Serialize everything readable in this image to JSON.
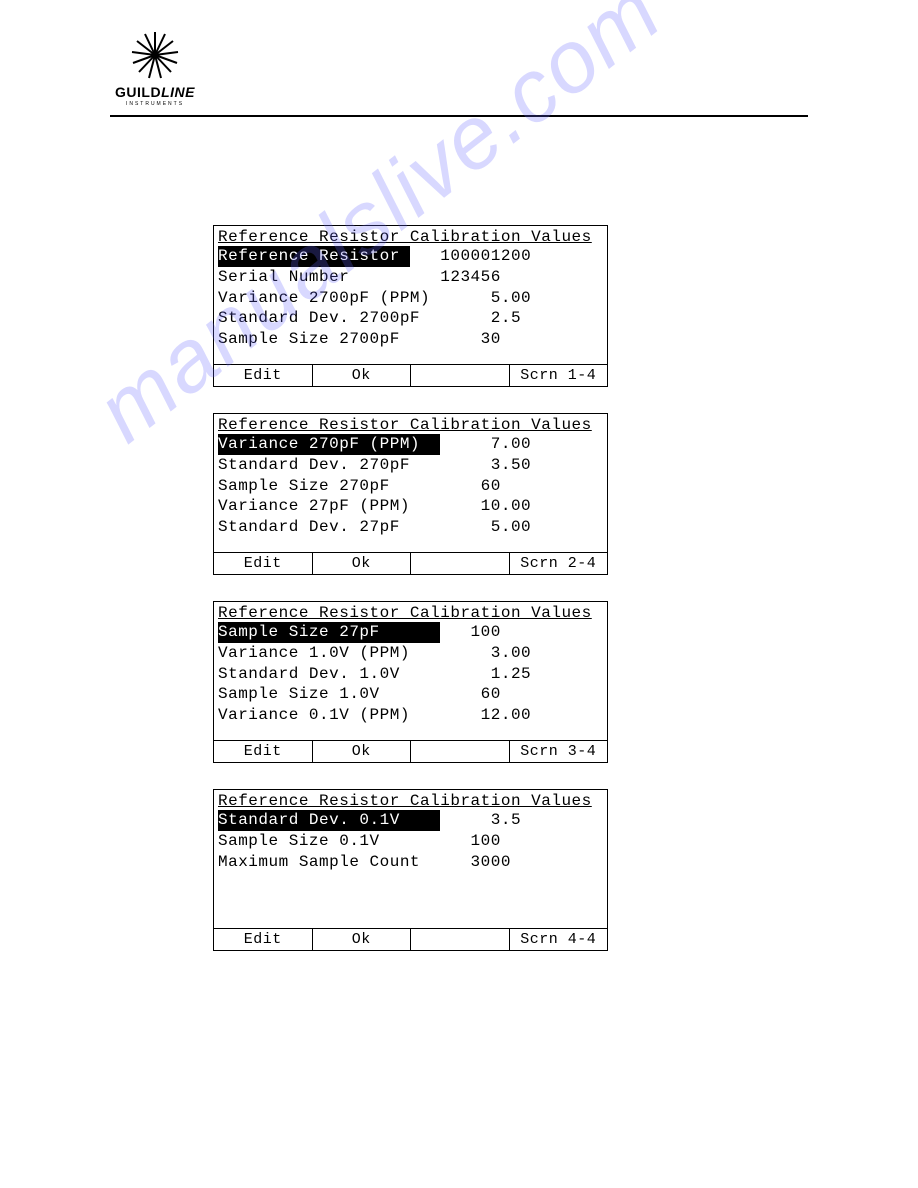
{
  "logo": {
    "brand_a": "GUILD",
    "brand_b": "LINE",
    "sub": "INSTRUMENTS"
  },
  "watermark": "manualslive.com",
  "panels": [
    {
      "title": "Reference Resistor Calibration Values",
      "rows": [
        {
          "label": "Reference Resistor",
          "value": "100001200",
          "highlighted": true,
          "label_width": 19
        },
        {
          "label": "Serial Number",
          "value": "123456",
          "highlighted": false,
          "label_width": 19
        },
        {
          "label": "Variance 2700pF (PPM)",
          "value": "  5.00",
          "highlighted": false,
          "label_width": 22
        },
        {
          "label": "Standard Dev. 2700pF",
          "value": "  2.5",
          "highlighted": false,
          "label_width": 22
        },
        {
          "label": "Sample Size 2700pF",
          "value": " 30",
          "highlighted": false,
          "label_width": 22
        }
      ],
      "buttons": [
        "Edit",
        "Ok",
        "",
        "Scrn 1-4"
      ]
    },
    {
      "title": "Reference Resistor Calibration Values",
      "rows": [
        {
          "label": "Variance 270pF (PPM)",
          "value": "  7.00",
          "highlighted": true,
          "label_width": 22
        },
        {
          "label": "Standard Dev. 270pF",
          "value": "  3.50",
          "highlighted": false,
          "label_width": 22
        },
        {
          "label": "Sample Size 270pF",
          "value": " 60",
          "highlighted": false,
          "label_width": 22
        },
        {
          "label": "Variance 27pF (PPM)",
          "value": " 10.00",
          "highlighted": false,
          "label_width": 22
        },
        {
          "label": "Standard Dev. 27pF",
          "value": "  5.00",
          "highlighted": false,
          "label_width": 22
        }
      ],
      "buttons": [
        "Edit",
        "Ok",
        "",
        "Scrn 2-4"
      ]
    },
    {
      "title": "Reference Resistor Calibration Values",
      "rows": [
        {
          "label": "Sample Size 27pF",
          "value": "100",
          "highlighted": true,
          "label_width": 22
        },
        {
          "label": "Variance 1.0V (PPM)",
          "value": "  3.00",
          "highlighted": false,
          "label_width": 22
        },
        {
          "label": "Standard Dev. 1.0V",
          "value": "  1.25",
          "highlighted": false,
          "label_width": 22
        },
        {
          "label": "Sample Size 1.0V",
          "value": " 60",
          "highlighted": false,
          "label_width": 22
        },
        {
          "label": "Variance 0.1V (PPM)",
          "value": " 12.00",
          "highlighted": false,
          "label_width": 22
        }
      ],
      "buttons": [
        "Edit",
        "Ok",
        "",
        "Scrn 3-4"
      ]
    },
    {
      "title": "Reference Resistor Calibration Values",
      "rows": [
        {
          "label": "Standard Dev. 0.1V",
          "value": "  3.5",
          "highlighted": true,
          "label_width": 22
        },
        {
          "label": "Sample Size 0.1V",
          "value": "100",
          "highlighted": false,
          "label_width": 22
        },
        {
          "label": "Maximum Sample Count",
          "value": "3000",
          "highlighted": false,
          "label_width": 22
        }
      ],
      "buttons": [
        "Edit",
        "Ok",
        "",
        "Scrn 4-4"
      ]
    }
  ]
}
